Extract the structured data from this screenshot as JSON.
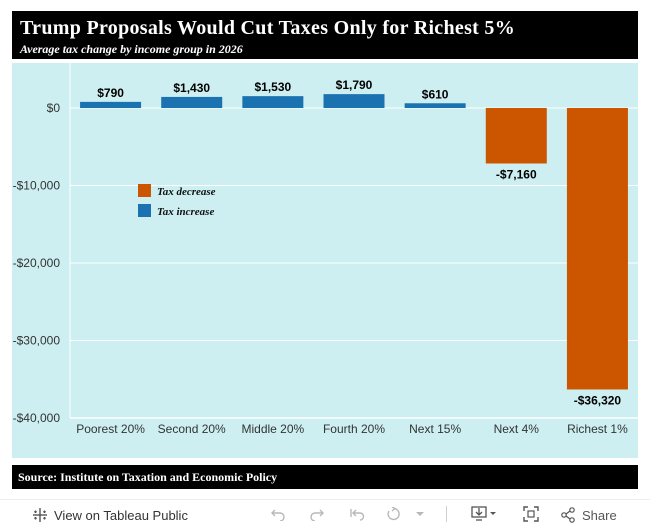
{
  "header": {
    "title": "Trump Proposals Would Cut Taxes Only for Richest 5%",
    "subtitle": "Average tax change by income group in 2026"
  },
  "source": "Source: Institute on Taxation and Economic Policy",
  "colors": {
    "increase": "#1a73b0",
    "decrease": "#cc5500",
    "plot_background": "#cdeff1"
  },
  "chart_data": {
    "type": "bar",
    "categories": [
      "Poorest 20%",
      "Second 20%",
      "Middle 20%",
      "Fourth 20%",
      "Next 15%",
      "Next 4%",
      "Richest 1%"
    ],
    "values": [
      790,
      1430,
      1530,
      1790,
      610,
      -7160,
      -36320
    ],
    "value_labels": [
      "$790",
      "$1,430",
      "$1,530",
      "$1,790",
      "$610",
      "-$7,160",
      "-$36,320"
    ],
    "y_ticks": [
      0,
      -10000,
      -20000,
      -30000,
      -40000
    ],
    "y_tick_labels": [
      "$0",
      "-$10,000",
      "-$20,000",
      "-$30,000",
      "-$40,000"
    ],
    "ylim": [
      -41000,
      3000
    ],
    "legend": [
      {
        "name": "Tax decrease",
        "color": "#cc5500"
      },
      {
        "name": "Tax increase",
        "color": "#1a73b0"
      }
    ],
    "legend_position": "upper-left inside plot",
    "grid": "horizontal"
  },
  "footer": {
    "view_label": "View on Tableau Public",
    "share_label": "Share"
  }
}
